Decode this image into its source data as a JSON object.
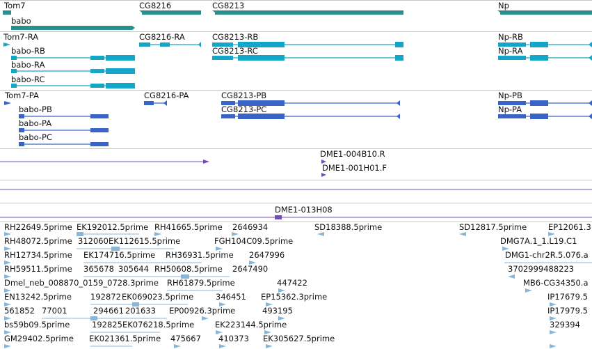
{
  "colors": {
    "gene": "#2a8f8c",
    "mrna_rna": "#14a6c6",
    "mrna_pep": "#3a63c7",
    "clone": "#7050b8",
    "est": "#88b6d6"
  },
  "gene_track": {
    "labels": [
      "Tom7",
      "babo",
      "CG8216",
      "CG8213",
      "Np"
    ]
  },
  "rna_track": {
    "labels": [
      "Tom7-RA",
      "babo-RB",
      "babo-RA",
      "babo-RC",
      "CG8216-RA",
      "CG8213-RB",
      "CG8213-RC",
      "Np-RB",
      "Np-RA"
    ]
  },
  "protein_track": {
    "labels": [
      "Tom7-PA",
      "babo-PB",
      "babo-PA",
      "babo-PC",
      "CG8216-PA",
      "CG8213-PB",
      "CG8213-PC",
      "Np-PB",
      "Np-PA"
    ]
  },
  "clone_track": {
    "labels": [
      "DME1-004B10.R",
      "DME1-001H01.F",
      "DME1-013H08"
    ]
  },
  "est_track": {
    "labels": [
      "RH22649.5prime",
      "EK192012.5prime",
      "RH41665.5prime",
      "2646934",
      "SD18388.5prime",
      "SD12817.5prime",
      "EP12061.3",
      "RH48072.5prime",
      "312060",
      "EK112615.5prime",
      "FGH104C09.5prime",
      "DMG7A.1_1.L19.C1",
      "RH12734.5prime",
      "EK174716.5prime",
      "RH36931.5prime",
      "2647996",
      "DMG1-chr2R.5.076.a",
      "RH59511.5prime",
      "365678",
      "305644",
      "RH50608.5prime",
      "2647490",
      "3702999488223",
      "Dmel_neb_008870_0159_0728.3prime",
      "RH61879.5prime",
      "447422",
      "MB6-CG34350.a",
      "EN13242.5prime",
      "192872",
      "EK069023.5prime",
      "346451",
      "EP15362.3prime",
      "IP17679.5",
      "561852",
      "77001",
      "294661",
      "201633",
      "EP00926.3prime",
      "493195",
      "IP17979.5",
      "bs59b09.5prime",
      "192825",
      "EK076218.5prime",
      "EK223144.5prime",
      "329394",
      "GM29402.5prime",
      "EK021361.5prime",
      "475667",
      "410373",
      "EK305627.5prime"
    ]
  }
}
